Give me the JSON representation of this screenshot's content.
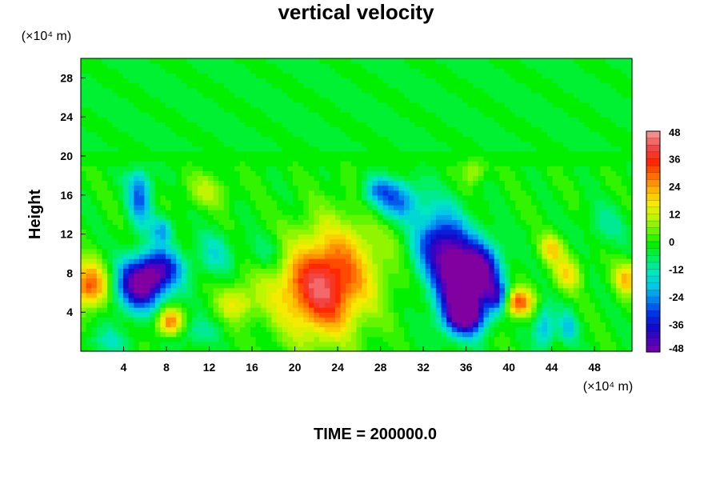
{
  "chart_data": {
    "type": "heatmap",
    "title": "vertical velocity",
    "ylabel": "Height",
    "x_unit": "(×10⁴ m)",
    "y_unit": "(×10⁴ m)",
    "footer": "TIME = 200000.0",
    "xlim": [
      0,
      51.5
    ],
    "ylim": [
      0,
      30
    ],
    "x_ticks": [
      4,
      8,
      12,
      16,
      20,
      24,
      28,
      32,
      36,
      40,
      44,
      48
    ],
    "y_ticks": [
      4,
      8,
      12,
      16,
      20,
      24,
      28
    ],
    "x_tick_labels": [
      "4",
      "8",
      "12",
      "16",
      "20",
      "24",
      "28",
      "32",
      "36",
      "40",
      "44",
      "48"
    ],
    "y_tick_labels": [
      "4",
      "8",
      "12",
      "16",
      "20",
      "24",
      "28"
    ],
    "colorbar": {
      "range": [
        -48,
        48
      ],
      "ticks": [
        48,
        36,
        24,
        12,
        0,
        -12,
        -24,
        -36,
        -48
      ],
      "tick_labels": [
        "48",
        "36",
        "24",
        "12",
        "0",
        "-12",
        "-24",
        "-36",
        "-48"
      ]
    },
    "features": [
      {
        "x": 22.5,
        "y": 6.5,
        "sx": 2.6,
        "sy": 3.5,
        "amp": 40
      },
      {
        "x": 0.8,
        "y": 6.8,
        "sx": 1.3,
        "sy": 1.6,
        "amp": 34
      },
      {
        "x": 8.3,
        "y": 3.0,
        "sx": 0.9,
        "sy": 1.0,
        "amp": 30
      },
      {
        "x": 40.8,
        "y": 5.0,
        "sx": 1.0,
        "sy": 1.0,
        "amp": 34
      },
      {
        "x": 44.0,
        "y": 10.5,
        "sx": 0.8,
        "sy": 1.0,
        "amp": 20
      },
      {
        "x": 45.5,
        "y": 8.0,
        "sx": 0.9,
        "sy": 1.2,
        "amp": 18
      },
      {
        "x": 14.5,
        "y": 5.0,
        "sx": 1.2,
        "sy": 1.3,
        "amp": 16
      },
      {
        "x": 36.7,
        "y": 18.8,
        "sx": 0.7,
        "sy": 1.0,
        "amp": 16
      },
      {
        "x": 11.8,
        "y": 16.5,
        "sx": 1.5,
        "sy": 1.2,
        "amp": 10
      },
      {
        "x": 51.0,
        "y": 7.5,
        "sx": 0.8,
        "sy": 1.2,
        "amp": 22
      },
      {
        "x": 5.5,
        "y": 6.8,
        "sx": 1.6,
        "sy": 1.8,
        "amp": -46
      },
      {
        "x": 7.5,
        "y": 8.5,
        "sx": 1.5,
        "sy": 1.5,
        "amp": -30
      },
      {
        "x": 5.5,
        "y": 16.0,
        "sx": 0.8,
        "sy": 2.2,
        "amp": -26
      },
      {
        "x": 7.6,
        "y": 12.5,
        "sx": 0.7,
        "sy": 1.0,
        "amp": -20
      },
      {
        "x": 35.3,
        "y": 6.8,
        "sx": 1.5,
        "sy": 2.8,
        "amp": -48
      },
      {
        "x": 37.5,
        "y": 8.0,
        "sx": 1.3,
        "sy": 2.2,
        "amp": -40
      },
      {
        "x": 33.5,
        "y": 11.0,
        "sx": 1.7,
        "sy": 2.5,
        "amp": -36
      },
      {
        "x": 29.5,
        "y": 15.5,
        "sx": 1.6,
        "sy": 1.5,
        "amp": -26
      },
      {
        "x": 27.5,
        "y": 16.5,
        "sx": 1.0,
        "sy": 1.0,
        "amp": -16
      },
      {
        "x": 36.0,
        "y": 3.5,
        "sx": 1.3,
        "sy": 1.2,
        "amp": -36
      },
      {
        "x": 39.0,
        "y": 5.5,
        "sx": 0.7,
        "sy": 1.0,
        "amp": -26
      },
      {
        "x": 43.3,
        "y": 2.5,
        "sx": 0.7,
        "sy": 1.5,
        "amp": -20
      },
      {
        "x": 45.5,
        "y": 2.5,
        "sx": 0.6,
        "sy": 1.2,
        "amp": -16
      },
      {
        "x": 12.5,
        "y": 10.0,
        "sx": 1.2,
        "sy": 1.5,
        "amp": -12
      },
      {
        "x": 17.5,
        "y": 10.0,
        "sx": 1.5,
        "sy": 1.5,
        "amp": -10
      },
      {
        "x": 10.5,
        "y": 2.0,
        "sx": 1.5,
        "sy": 1.0,
        "amp": -10
      },
      {
        "x": 2.5,
        "y": 1.0,
        "sx": 1.5,
        "sy": 1.0,
        "amp": -10
      },
      {
        "x": 49.0,
        "y": 13.0,
        "sx": 1.5,
        "sy": 1.5,
        "amp": -8
      },
      {
        "x": 26.0,
        "y": 10.0,
        "sx": 3.0,
        "sy": 4.0,
        "amp": 10
      },
      {
        "x": 18.0,
        "y": 7.0,
        "sx": 2.0,
        "sy": 3.0,
        "amp": 6
      }
    ]
  }
}
